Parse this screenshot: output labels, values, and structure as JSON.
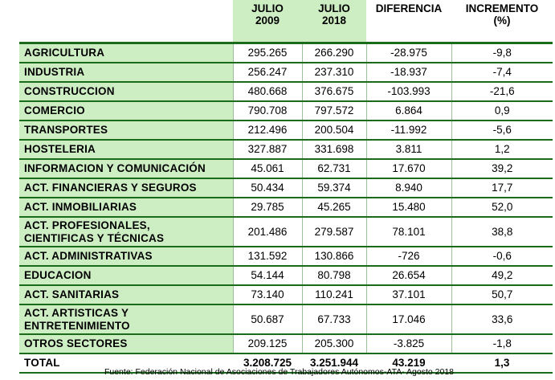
{
  "headers": {
    "sector": "",
    "y2009": "JULIO\n2009",
    "y2018": "JULIO\n2018",
    "diff": "DIFERENCIA",
    "inc": "INCREMENTO\n(%)"
  },
  "rows": [
    {
      "sector": "AGRICULTURA",
      "y2009": "295.265",
      "y2018": "266.290",
      "diff": "-28.975",
      "inc": "-9,8"
    },
    {
      "sector": "INDUSTRIA",
      "y2009": "256.247",
      "y2018": "237.310",
      "diff": "-18.937",
      "inc": "-7,4"
    },
    {
      "sector": "CONSTRUCCION",
      "y2009": "480.668",
      "y2018": "376.675",
      "diff": "-103.993",
      "inc": "-21,6"
    },
    {
      "sector": "COMERCIO",
      "y2009": "790.708",
      "y2018": "797.572",
      "diff": "6.864",
      "inc": "0,9"
    },
    {
      "sector": "TRANSPORTES",
      "y2009": "212.496",
      "y2018": "200.504",
      "diff": "-11.992",
      "inc": "-5,6"
    },
    {
      "sector": "HOSTELERIA",
      "y2009": "327.887",
      "y2018": "331.698",
      "diff": "3.811",
      "inc": "1,2"
    },
    {
      "sector": "INFORMACION Y COMUNICACIÓN",
      "y2009": "45.061",
      "y2018": "62.731",
      "diff": "17.670",
      "inc": "39,2"
    },
    {
      "sector": "ACT. FINANCIERAS Y SEGUROS",
      "y2009": "50.434",
      "y2018": "59.374",
      "diff": "8.940",
      "inc": "17,7"
    },
    {
      "sector": "ACT. INMOBILIARIAS",
      "y2009": "29.785",
      "y2018": "45.265",
      "diff": "15.480",
      "inc": "52,0"
    },
    {
      "sector": "ACT. PROFESIONALES,\nCIENTIFICAS Y TÉCNICAS",
      "y2009": "201.486",
      "y2018": "279.587",
      "diff": "78.101",
      "inc": "38,8"
    },
    {
      "sector": "ACT. ADMINISTRATIVAS",
      "y2009": "131.592",
      "y2018": "130.866",
      "diff": "-726",
      "inc": "-0,6"
    },
    {
      "sector": "EDUCACION",
      "y2009": "54.144",
      "y2018": "80.798",
      "diff": "26.654",
      "inc": "49,2"
    },
    {
      "sector": "ACT. SANITARIAS",
      "y2009": "73.140",
      "y2018": "110.241",
      "diff": "37.101",
      "inc": "50,7"
    },
    {
      "sector": "ACT. ARTISTICAS Y\nENTRETENIMIENTO",
      "y2009": "50.687",
      "y2018": "67.733",
      "diff": "17.046",
      "inc": "33,6"
    },
    {
      "sector": "OTROS SECTORES",
      "y2009": "209.125",
      "y2018": "205.300",
      "diff": "-3.825",
      "inc": "-1,8"
    }
  ],
  "total": {
    "sector": "TOTAL",
    "y2009": "3.208.725",
    "y2018": "3.251.944",
    "diff": "43.219",
    "inc": "1,3"
  },
  "source": "Fuente: Federación Nacional de Asociaciones de Trabajadores Autónomos-ATA- Agosto 2018",
  "colors": {
    "sector_fill": "#cdeec3",
    "rule": "#1a6b1a"
  }
}
